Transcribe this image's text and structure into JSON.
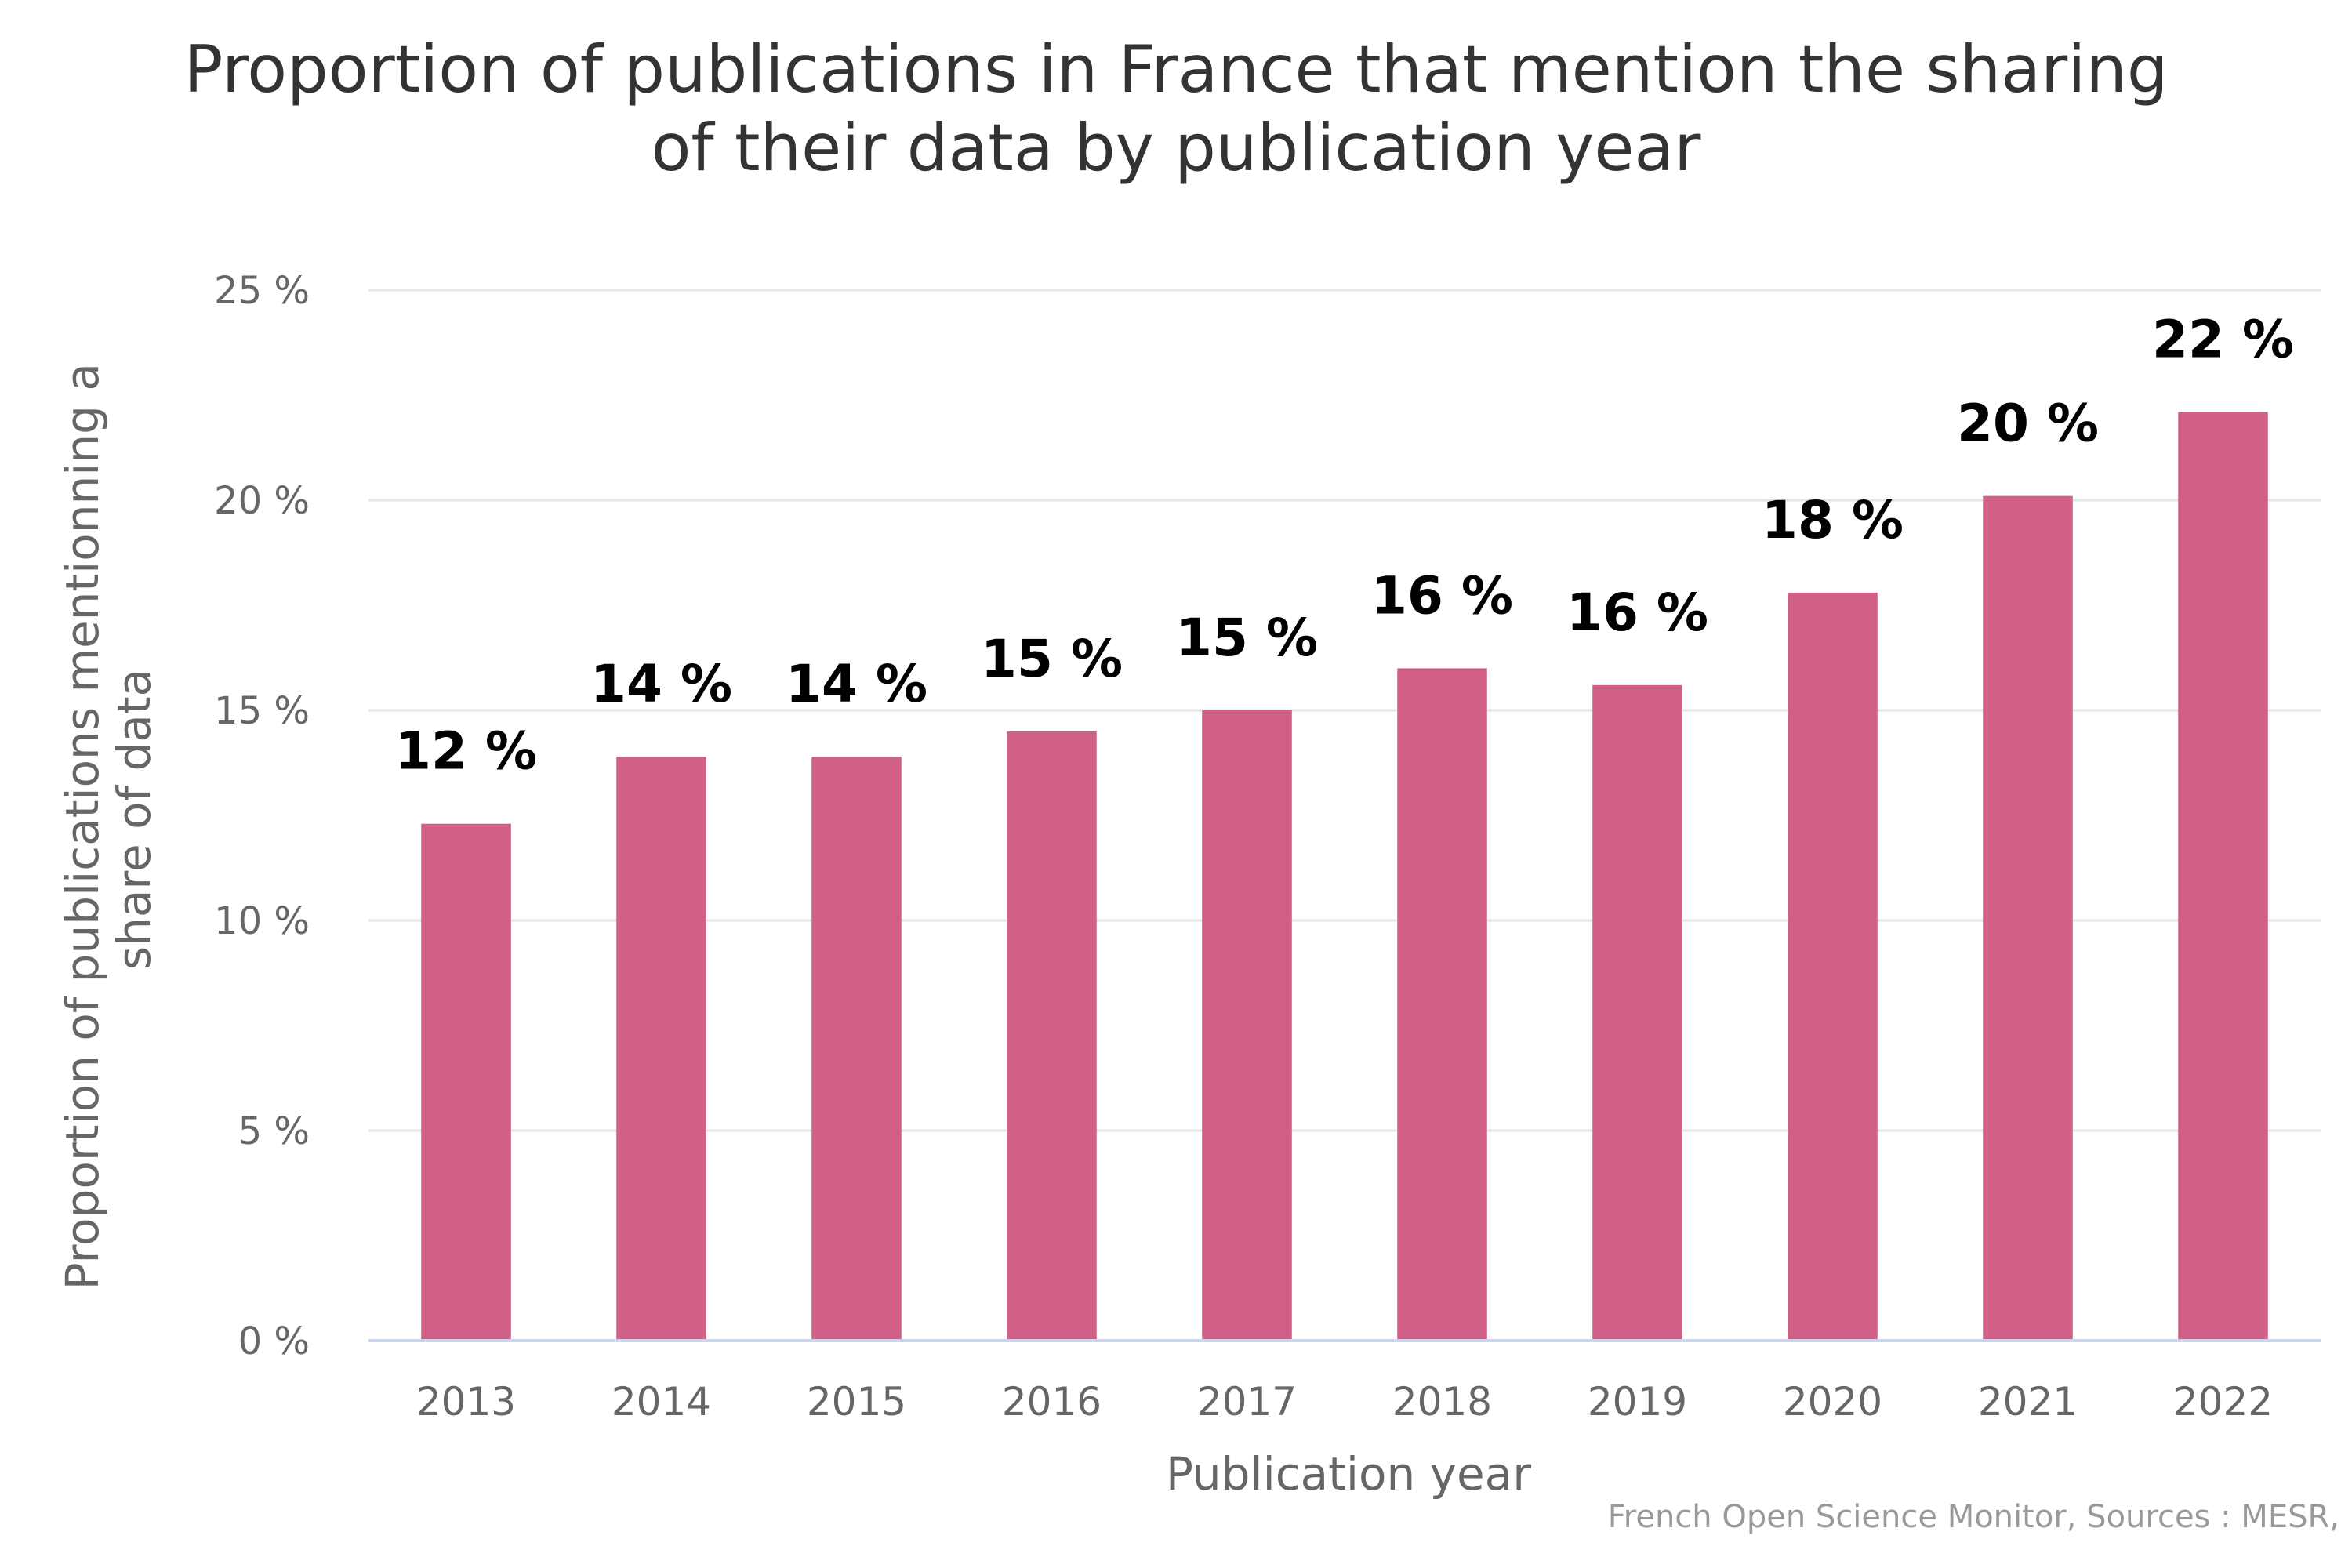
{
  "chart_data": {
    "type": "bar",
    "title_lines": [
      "Proportion of publications in France that mention the sharing",
      "of their data by publication year"
    ],
    "xlabel": "Publication year",
    "ylabel_lines": [
      "Proportion of publications mentionning a",
      "share of data"
    ],
    "categories": [
      "2013",
      "2014",
      "2015",
      "2016",
      "2017",
      "2018",
      "2019",
      "2020",
      "2021",
      "2022"
    ],
    "values": [
      12.3,
      13.9,
      13.9,
      14.5,
      15.0,
      16.0,
      15.6,
      17.8,
      20.1,
      22.1
    ],
    "data_labels": [
      "12 %",
      "14 %",
      "14 %",
      "15 %",
      "15 %",
      "16 %",
      "16 %",
      "18 %",
      "20 %",
      "22 %"
    ],
    "yticks": [
      0,
      5,
      10,
      15,
      20,
      25
    ],
    "ytick_labels": [
      "0 %",
      "5 %",
      "10 %",
      "15 %",
      "20 %",
      "25 %"
    ],
    "ylim": [
      0,
      25
    ],
    "grid": true,
    "bar_color": "#d06087",
    "credits": "French Open Science Monitor, Sources : MESR,"
  }
}
